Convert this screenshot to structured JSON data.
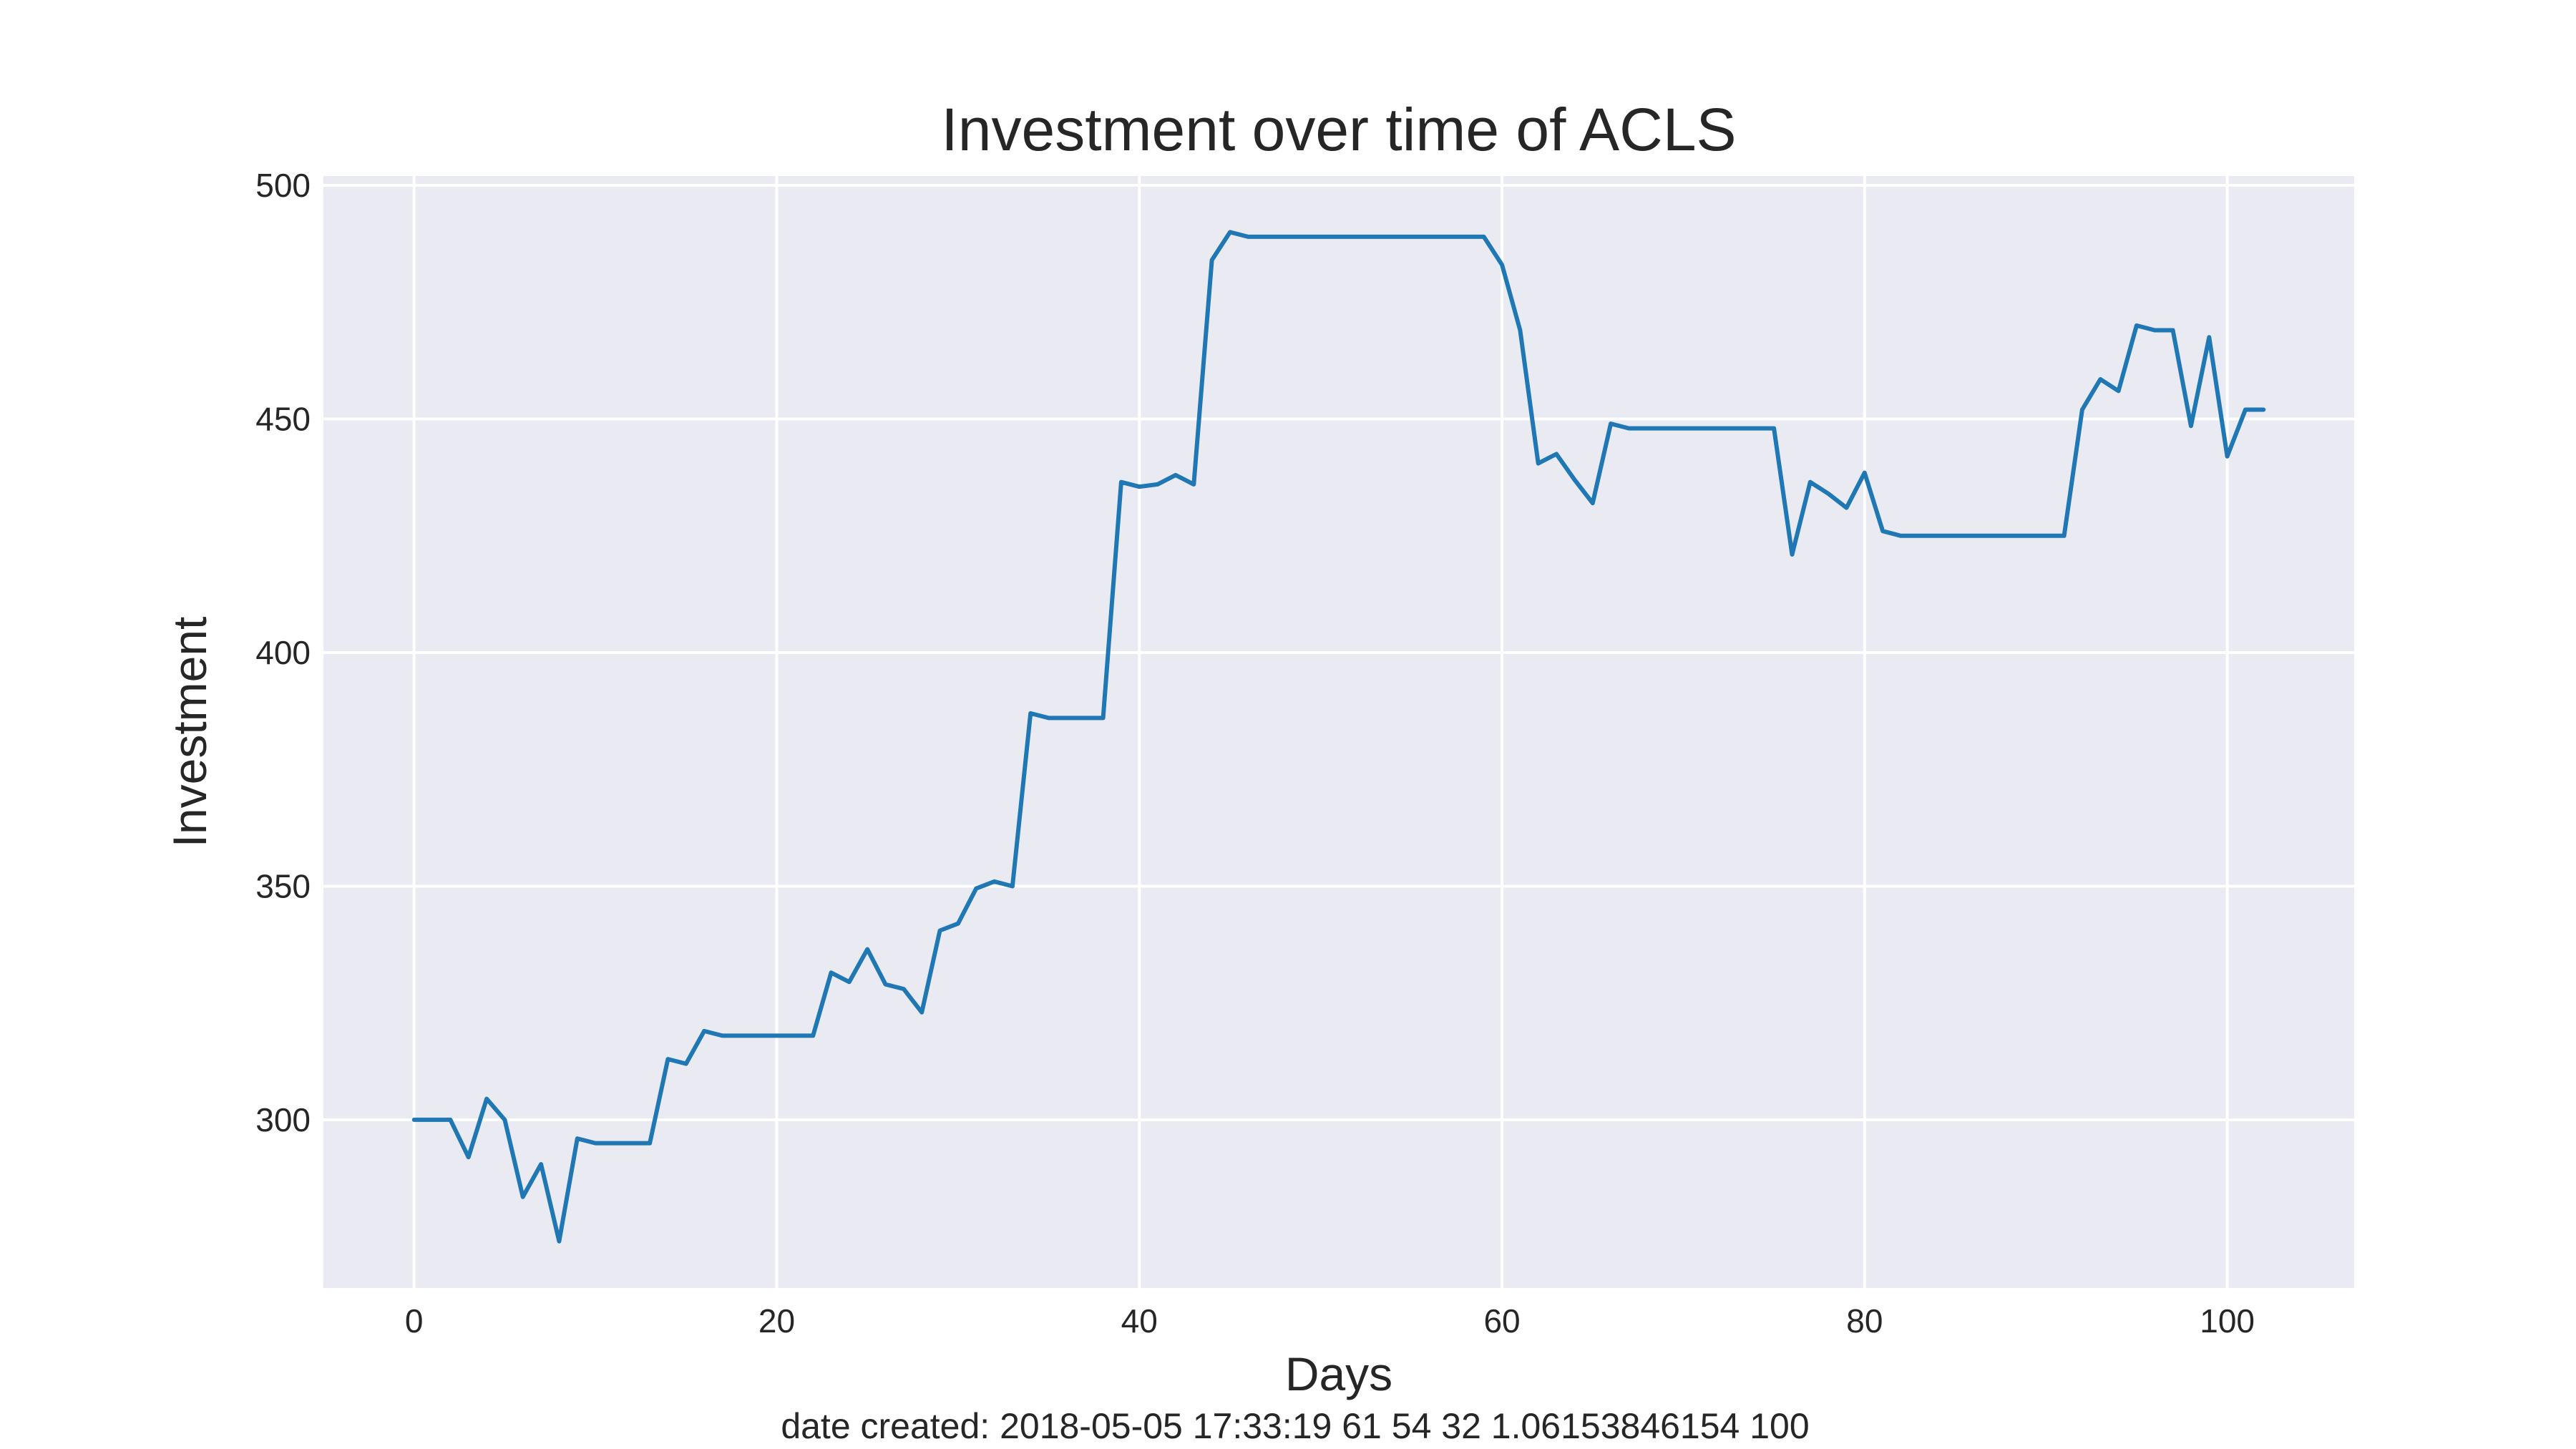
{
  "chart_data": {
    "type": "line",
    "title": "Investment over time of ACLS",
    "xlabel": "Days",
    "ylabel": "Investment",
    "xlim": [
      -5,
      107
    ],
    "ylim": [
      264,
      502
    ],
    "xticks": [
      0,
      20,
      40,
      60,
      80,
      100
    ],
    "yticks": [
      300,
      350,
      400,
      450,
      500
    ],
    "grid": true,
    "background_color": "#EAEAF2",
    "grid_color": "#FFFFFF",
    "line_color": "#1F77B4",
    "series": [
      {
        "x": [
          0,
          1,
          2,
          3,
          4,
          5,
          6,
          7,
          8,
          9,
          10,
          11,
          12,
          13,
          14,
          15,
          16,
          17,
          18,
          19,
          20,
          21,
          22,
          23,
          24,
          25,
          26,
          27,
          28,
          29,
          30,
          31,
          32,
          33,
          34,
          35,
          36,
          37,
          38,
          39,
          40,
          41,
          42,
          43,
          44,
          45,
          46,
          47,
          48,
          49,
          50,
          51,
          52,
          53,
          54,
          55,
          56,
          57,
          58,
          59,
          60,
          61,
          62,
          63,
          64,
          65,
          66,
          67,
          68,
          69,
          70,
          71,
          72,
          73,
          74,
          75,
          76,
          77,
          78,
          79,
          80,
          81,
          82,
          83,
          84,
          85,
          86,
          87,
          88,
          89,
          90,
          91,
          92,
          93,
          94,
          95,
          96,
          97,
          98,
          99,
          100,
          101,
          102
        ],
        "values": [
          300,
          300,
          300,
          292,
          304.5,
          300,
          283.5,
          290.5,
          274,
          296,
          295,
          295,
          295,
          295,
          313,
          312,
          319,
          318,
          318,
          318,
          318,
          318,
          318,
          331.5,
          329.5,
          336.5,
          329,
          328,
          323,
          340.5,
          342,
          349.5,
          351,
          350,
          387,
          386,
          386,
          386,
          386,
          436.5,
          435.5,
          436,
          438,
          436,
          484,
          490,
          489,
          489,
          489,
          489,
          489,
          489,
          489,
          489,
          489,
          489,
          489,
          489,
          489,
          489,
          483,
          469,
          440.5,
          442.5,
          437,
          432,
          449,
          448,
          448,
          448,
          448,
          448,
          448,
          448,
          448,
          448,
          421,
          436.5,
          434,
          431,
          438.5,
          426,
          425,
          425,
          425,
          425,
          425,
          425,
          425,
          425,
          425,
          425,
          452,
          458.5,
          456,
          470,
          469,
          469,
          448.5,
          467.5,
          442,
          452,
          452
        ]
      }
    ]
  },
  "footer": {
    "text": "date created: 2018-05-05 17:33:19 61 54 32 1.06153846154 100"
  }
}
